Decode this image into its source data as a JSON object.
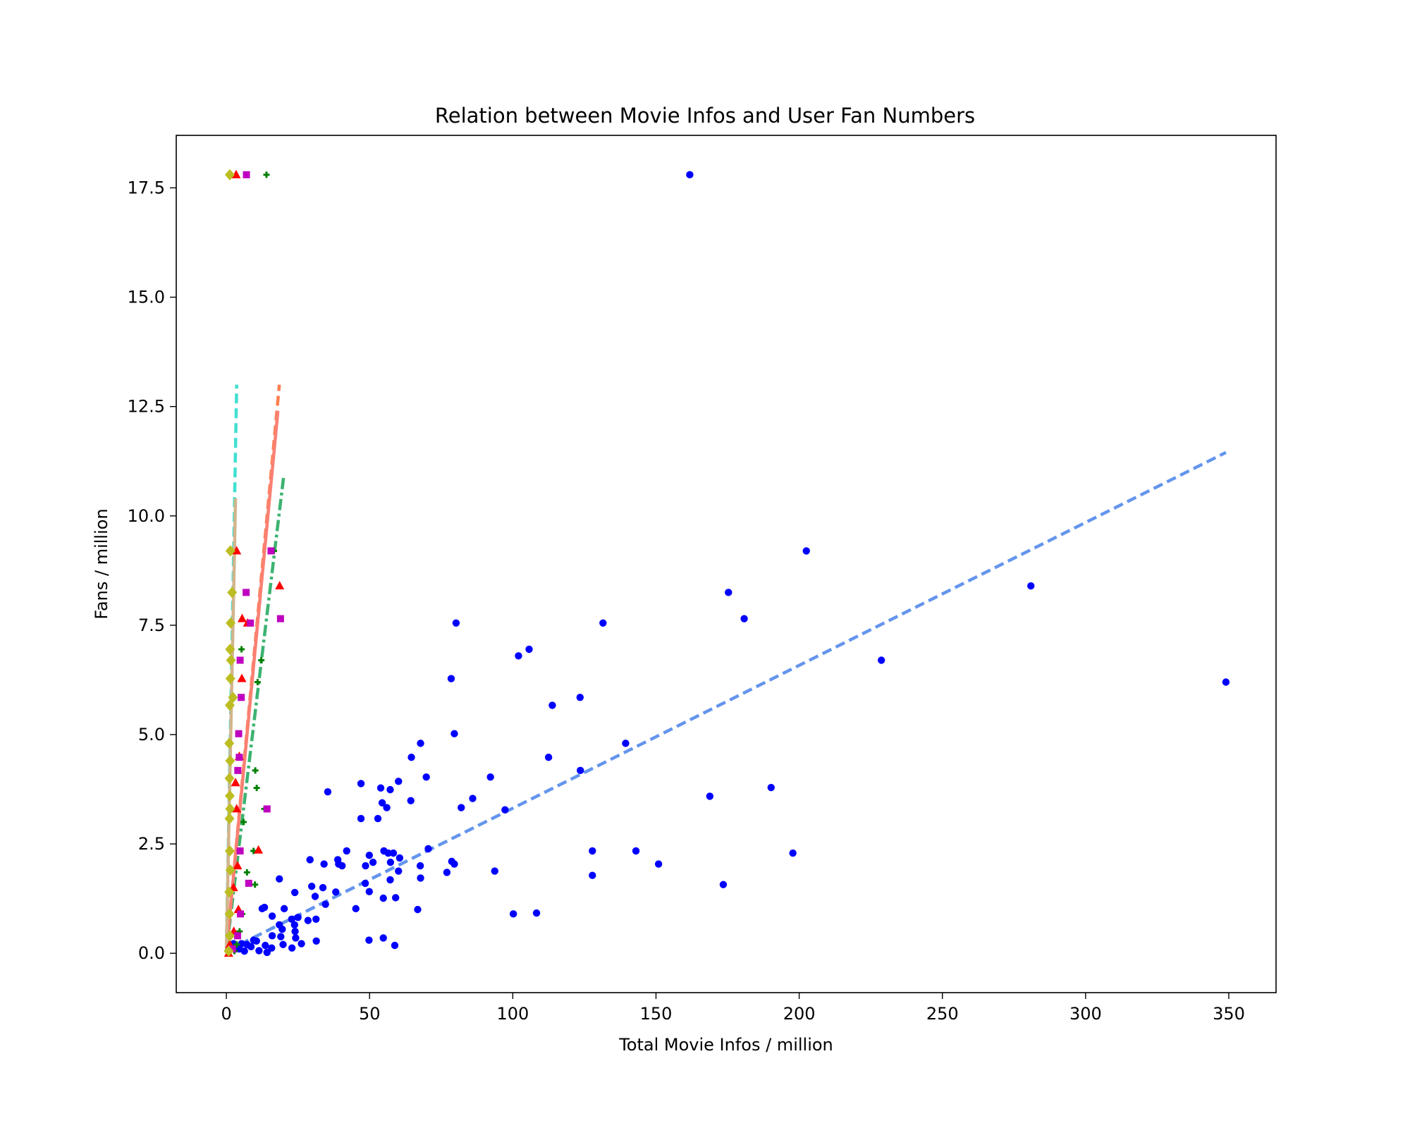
{
  "chart_data": {
    "type": "scatter",
    "title": "Relation between Movie Infos and User Fan Numbers",
    "xlabel": "Total Movie Infos / million",
    "ylabel": "Fans / million",
    "xlim": [
      -17.5,
      366.5
    ],
    "ylim": [
      -0.9,
      18.7
    ],
    "x_ticks": [
      0,
      50,
      100,
      150,
      200,
      250,
      300,
      350
    ],
    "y_ticks": [
      0.0,
      2.5,
      5.0,
      7.5,
      10.0,
      12.5,
      15.0,
      17.5
    ],
    "grid": false,
    "legend": "none",
    "series": [
      {
        "marker": "circle",
        "color": "#0000ff",
        "points": [
          [
            161.8,
            17.8
          ],
          [
            202.5,
            9.2
          ],
          [
            280.9,
            8.4
          ],
          [
            175.3,
            8.25
          ],
          [
            180.8,
            7.65
          ],
          [
            349.0,
            6.2
          ],
          [
            228.7,
            6.7
          ],
          [
            131.5,
            7.55
          ],
          [
            80.2,
            7.55
          ],
          [
            105.7,
            6.95
          ],
          [
            102.0,
            6.8
          ],
          [
            78.5,
            6.28
          ],
          [
            123.5,
            5.85
          ],
          [
            113.8,
            5.67
          ],
          [
            79.6,
            5.02
          ],
          [
            67.8,
            4.8
          ],
          [
            139.4,
            4.8
          ],
          [
            64.6,
            4.48
          ],
          [
            112.5,
            4.48
          ],
          [
            123.6,
            4.18
          ],
          [
            92.2,
            4.03
          ],
          [
            69.8,
            4.03
          ],
          [
            60.1,
            3.93
          ],
          [
            47.0,
            3.88
          ],
          [
            53.9,
            3.78
          ],
          [
            57.2,
            3.74
          ],
          [
            35.4,
            3.69
          ],
          [
            168.8,
            3.59
          ],
          [
            190.2,
            3.79
          ],
          [
            64.4,
            3.49
          ],
          [
            86.0,
            3.54
          ],
          [
            54.4,
            3.44
          ],
          [
            56.0,
            3.33
          ],
          [
            82.0,
            3.33
          ],
          [
            97.3,
            3.28
          ],
          [
            47.0,
            3.08
          ],
          [
            52.9,
            3.08
          ],
          [
            70.5,
            2.39
          ],
          [
            127.8,
            2.34
          ],
          [
            143.0,
            2.34
          ],
          [
            197.8,
            2.29
          ],
          [
            42.0,
            2.34
          ],
          [
            55.0,
            2.34
          ],
          [
            56.5,
            2.29
          ],
          [
            58.3,
            2.29
          ],
          [
            38.9,
            2.14
          ],
          [
            49.9,
            2.24
          ],
          [
            60.5,
            2.18
          ],
          [
            29.2,
            2.14
          ],
          [
            34.1,
            2.04
          ],
          [
            39.2,
            2.04
          ],
          [
            40.4,
            2.0
          ],
          [
            48.6,
            2.0
          ],
          [
            51.2,
            2.08
          ],
          [
            57.3,
            2.08
          ],
          [
            67.7,
            2.0
          ],
          [
            78.7,
            2.1
          ],
          [
            79.6,
            2.04
          ],
          [
            150.9,
            2.04
          ],
          [
            93.7,
            1.88
          ],
          [
            60.1,
            1.88
          ],
          [
            77.0,
            1.85
          ],
          [
            127.8,
            1.78
          ],
          [
            18.5,
            1.7
          ],
          [
            57.2,
            1.68
          ],
          [
            67.8,
            1.72
          ],
          [
            173.5,
            1.57
          ],
          [
            29.8,
            1.53
          ],
          [
            33.7,
            1.5
          ],
          [
            38.2,
            1.4
          ],
          [
            48.5,
            1.6
          ],
          [
            49.9,
            1.41
          ],
          [
            23.9,
            1.39
          ],
          [
            31.0,
            1.3
          ],
          [
            54.8,
            1.26
          ],
          [
            59.1,
            1.27
          ],
          [
            13.3,
            1.05
          ],
          [
            12.5,
            1.02
          ],
          [
            20.2,
            1.02
          ],
          [
            34.6,
            1.12
          ],
          [
            45.2,
            1.02
          ],
          [
            66.8,
            1.0
          ],
          [
            100.2,
            0.9
          ],
          [
            108.3,
            0.92
          ],
          [
            16.0,
            0.85
          ],
          [
            22.8,
            0.78
          ],
          [
            25.0,
            0.82
          ],
          [
            28.5,
            0.75
          ],
          [
            31.3,
            0.78
          ],
          [
            18.5,
            0.65
          ],
          [
            19.5,
            0.55
          ],
          [
            23.8,
            0.65
          ],
          [
            19.0,
            0.38
          ],
          [
            24.0,
            0.5
          ],
          [
            16.0,
            0.4
          ],
          [
            24.2,
            0.35
          ],
          [
            31.4,
            0.28
          ],
          [
            49.8,
            0.3
          ],
          [
            54.8,
            0.35
          ],
          [
            58.8,
            0.18
          ],
          [
            19.8,
            0.2
          ],
          [
            22.9,
            0.12
          ],
          [
            26.2,
            0.22
          ],
          [
            13.6,
            0.18
          ],
          [
            10.5,
            0.28
          ],
          [
            7.2,
            0.2
          ],
          [
            4.5,
            0.1
          ],
          [
            8.6,
            0.15
          ],
          [
            11.4,
            0.06
          ],
          [
            14.2,
            0.02
          ],
          [
            6.3,
            0.05
          ],
          [
            9.5,
            0.3
          ],
          [
            3.2,
            0.1
          ],
          [
            2.5,
            0.22
          ],
          [
            5.3,
            0.22
          ],
          [
            15.8,
            0.12
          ]
        ]
      },
      {
        "marker": "plus",
        "color": "#008000",
        "points": [
          [
            14.0,
            17.8
          ],
          [
            16.6,
            9.2
          ],
          [
            12.2,
            6.7
          ],
          [
            5.3,
            6.95
          ],
          [
            10.9,
            6.2
          ],
          [
            10.1,
            4.18
          ],
          [
            10.6,
            3.78
          ],
          [
            13.3,
            3.3
          ],
          [
            6.0,
            3.0
          ],
          [
            9.5,
            2.34
          ],
          [
            10.0,
            1.57
          ],
          [
            7.2,
            1.85
          ],
          [
            5.5,
            0.9
          ],
          [
            4.6,
            0.5
          ],
          [
            3.6,
            0.2
          ],
          [
            2.8,
            0.05
          ]
        ]
      },
      {
        "marker": "triangle",
        "color": "#ff0000",
        "points": [
          [
            3.4,
            17.8
          ],
          [
            3.6,
            9.2
          ],
          [
            18.6,
            8.4
          ],
          [
            5.5,
            7.65
          ],
          [
            7.4,
            7.55
          ],
          [
            5.4,
            6.28
          ],
          [
            11.2,
            2.36
          ],
          [
            4.5,
            4.5
          ],
          [
            3.2,
            3.9
          ],
          [
            3.6,
            3.3
          ],
          [
            3.9,
            2.0
          ],
          [
            2.5,
            1.5
          ],
          [
            4.2,
            1.0
          ],
          [
            2.6,
            0.5
          ],
          [
            1.2,
            0.2
          ],
          [
            0.8,
            0.0
          ]
        ]
      },
      {
        "marker": "square",
        "color": "#c000c0",
        "points": [
          [
            7.0,
            17.8
          ],
          [
            15.6,
            9.2
          ],
          [
            6.9,
            8.25
          ],
          [
            18.9,
            7.65
          ],
          [
            8.4,
            7.55
          ],
          [
            4.8,
            6.7
          ],
          [
            5.2,
            5.85
          ],
          [
            4.3,
            5.02
          ],
          [
            4.5,
            4.48
          ],
          [
            4.0,
            4.18
          ],
          [
            14.2,
            3.3
          ],
          [
            4.8,
            2.34
          ],
          [
            7.8,
            1.6
          ],
          [
            4.9,
            0.9
          ],
          [
            3.9,
            0.4
          ],
          [
            2.1,
            0.1
          ]
        ]
      },
      {
        "marker": "diamond",
        "color": "#bcbd22",
        "points": [
          [
            1.2,
            17.8
          ],
          [
            1.4,
            9.2
          ],
          [
            2.0,
            8.25
          ],
          [
            1.5,
            7.55
          ],
          [
            1.3,
            6.95
          ],
          [
            1.6,
            6.7
          ],
          [
            1.4,
            6.28
          ],
          [
            2.3,
            5.85
          ],
          [
            1.2,
            5.67
          ],
          [
            1.0,
            4.8
          ],
          [
            1.3,
            4.4
          ],
          [
            1.1,
            4.0
          ],
          [
            1.2,
            3.6
          ],
          [
            1.3,
            3.3
          ],
          [
            1.1,
            3.08
          ],
          [
            1.2,
            2.34
          ],
          [
            1.4,
            1.9
          ],
          [
            1.0,
            1.4
          ],
          [
            1.1,
            0.9
          ],
          [
            1.2,
            0.4
          ],
          [
            0.8,
            0.05
          ]
        ]
      }
    ],
    "fit_lines": [
      {
        "color": "#6495ed",
        "dash": "long",
        "x": [
          0.0,
          349.0
        ],
        "y": [
          0.05,
          11.45
        ]
      },
      {
        "color": "#40e0d0",
        "dash": "long",
        "x": [
          0.0,
          3.6
        ],
        "y": [
          0.05,
          13.0
        ]
      },
      {
        "color": "#ff7f50",
        "dash": "long",
        "x": [
          0.0,
          18.5
        ],
        "y": [
          0.05,
          13.0
        ]
      },
      {
        "color": "#3cb371",
        "dash": "dashdot",
        "x": [
          0.0,
          20.0
        ],
        "y": [
          0.05,
          10.9
        ]
      },
      {
        "color": "#fa8072",
        "dash": "solid",
        "x": [
          0.0,
          18.0
        ],
        "y": [
          0.05,
          12.4
        ]
      },
      {
        "color": "#d2b48c",
        "dash": "solid",
        "x": [
          0.0,
          3.2
        ],
        "y": [
          0.05,
          10.4
        ]
      }
    ]
  }
}
